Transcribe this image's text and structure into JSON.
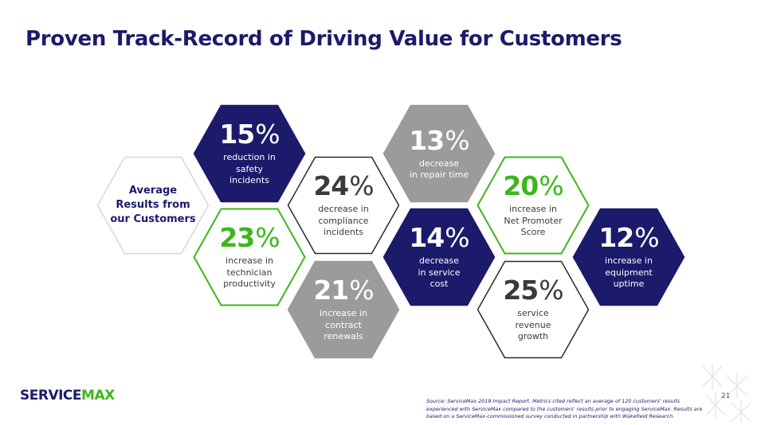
{
  "page_title": "Proven Track-Record of Driving Value for Customers",
  "intro": {
    "lines": [
      "Average",
      "Results from",
      "our Customers"
    ]
  },
  "hexes": [
    {
      "percent": "15",
      "unit": "%",
      "lines": [
        "reduction in",
        "safety",
        "incidents"
      ],
      "style": "navy"
    },
    {
      "percent": "23",
      "unit": "%",
      "lines": [
        "increase in",
        "technician",
        "productivity"
      ],
      "style": "green-outline"
    },
    {
      "percent": "24",
      "unit": "%",
      "lines": [
        "decrease in",
        "compliance",
        "incidents"
      ],
      "style": "dark-outline"
    },
    {
      "percent": "21",
      "unit": "%",
      "lines": [
        "increase in",
        "contract",
        "renewals"
      ],
      "style": "gray"
    },
    {
      "percent": "13",
      "unit": "%",
      "lines": [
        "decrease",
        "in repair time"
      ],
      "style": "gray"
    },
    {
      "percent": "14",
      "unit": "%",
      "lines": [
        "decrease",
        "in service",
        "cost"
      ],
      "style": "navy"
    },
    {
      "percent": "20",
      "unit": "%",
      "lines": [
        "increase in",
        "Net Promoter",
        "Score"
      ],
      "style": "green-outline"
    },
    {
      "percent": "25",
      "unit": "%",
      "lines": [
        "service",
        "revenue",
        "growth"
      ],
      "style": "dark-outline"
    },
    {
      "percent": "12",
      "unit": "%",
      "lines": [
        "increase in",
        "equipment",
        "uptime"
      ],
      "style": "navy"
    }
  ],
  "logo": {
    "part1": "SERVICE",
    "part2": "MAX"
  },
  "page_number": "21",
  "footnote": {
    "lines": [
      "Source: ServiceMax 2019 Impact Report. Metrics cited reflect an average of 120 customers' results",
      "experienced with ServiceMax compared to the customers' results prior to engaging ServiceMax. Results are",
      "based on a ServiceMax-commissioned survey conducted in partnership with Wakefield Research."
    ]
  },
  "colors": {
    "navy": "#1c1a6b",
    "green": "#3cb71a",
    "gray": "#9b9b9b",
    "dark_text": "#3a3a3a",
    "light_outline": "#d6d6d6"
  }
}
